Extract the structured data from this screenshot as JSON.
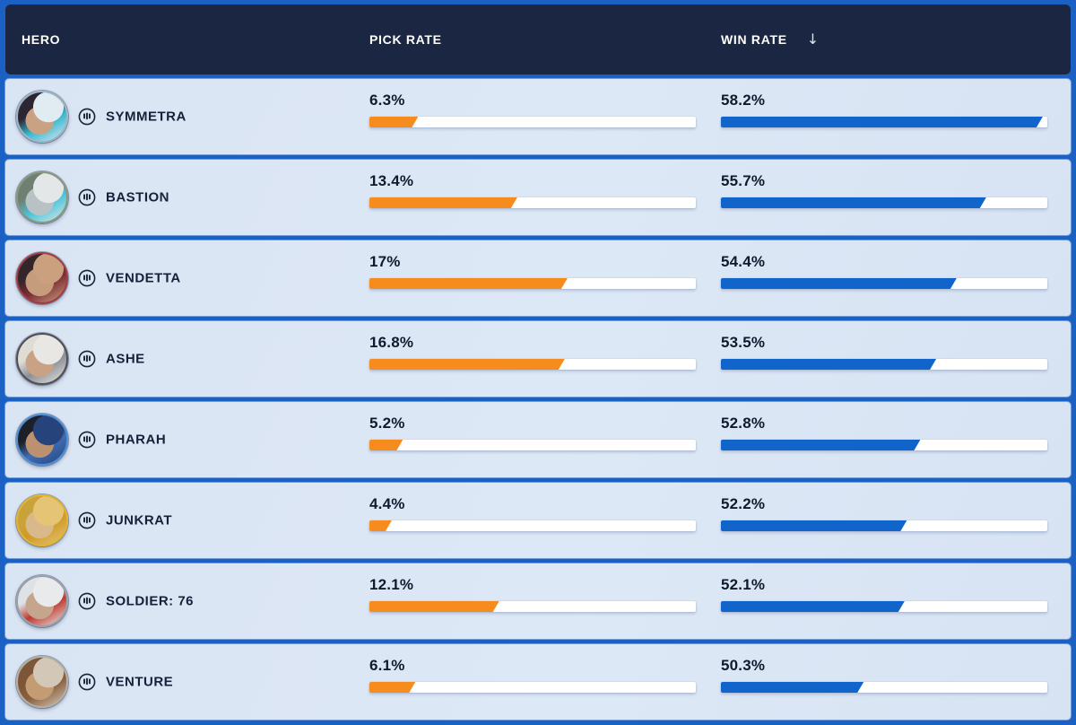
{
  "header": {
    "columns": [
      {
        "id": "hero",
        "label": "HERO"
      },
      {
        "id": "pick",
        "label": "PICK RATE"
      },
      {
        "id": "win",
        "label": "WIN RATE",
        "sort": "desc"
      }
    ],
    "sort_icon": "↓",
    "bg_color": "#1b2742",
    "text_color": "#ffffff"
  },
  "colors": {
    "page_background": "#1b61c4",
    "row_background": "#dbe6f4",
    "pick_bar": "#f78c1e",
    "win_bar": "#1164ca",
    "bar_track": "#ffffff",
    "hero_text": "#15203a"
  },
  "rows": [
    {
      "hero": "SYMMETRA",
      "role": "damage",
      "pick_label": "6.3%",
      "pick_value": 6.3,
      "win_label": "58.2%",
      "win_value": 58.2,
      "avatar": {
        "ring": "#9db6c6",
        "primary": "#e0ebf2",
        "accent": "#35b6cf",
        "hair": "#2c2633",
        "skin": "#c9a183"
      }
    },
    {
      "hero": "BASTION",
      "role": "damage",
      "pick_label": "13.4%",
      "pick_value": 13.4,
      "win_label": "55.7%",
      "win_value": 55.7,
      "avatar": {
        "ring": "#87987f",
        "primary": "#e3e7e8",
        "accent": "#49c3d8",
        "hair": "#6f7f72",
        "skin": "#b8c2c4"
      }
    },
    {
      "hero": "VENDETTA",
      "role": "damage",
      "pick_label": "17%",
      "pick_value": 17.0,
      "win_label": "54.4%",
      "win_value": 54.4,
      "avatar": {
        "ring": "#a23a43",
        "primary": "#caa07f",
        "accent": "#7e2e35",
        "hair": "#33262b",
        "skin": "#c59c7c"
      }
    },
    {
      "hero": "ASHE",
      "role": "damage",
      "pick_label": "16.8%",
      "pick_value": 16.8,
      "win_label": "53.5%",
      "win_value": 53.5,
      "avatar": {
        "ring": "#4e4f55",
        "primary": "#e9e7e3",
        "accent": "#8c8f96",
        "hair": "#dfdcd6",
        "skin": "#c9a184"
      }
    },
    {
      "hero": "PHARAH",
      "role": "damage",
      "pick_label": "5.2%",
      "pick_value": 5.2,
      "win_label": "52.8%",
      "win_value": 52.8,
      "avatar": {
        "ring": "#4b8fd6",
        "primary": "#27437c",
        "accent": "#3f6db3",
        "hair": "#1d2029",
        "skin": "#bb9170"
      }
    },
    {
      "hero": "JUNKRAT",
      "role": "damage",
      "pick_label": "4.4%",
      "pick_value": 4.4,
      "win_label": "52.2%",
      "win_value": 52.2,
      "avatar": {
        "ring": "#e5b32b",
        "primary": "#e5c575",
        "accent": "#cf9b2a",
        "hair": "#caa23c",
        "skin": "#d9b98a"
      }
    },
    {
      "hero": "SOLDIER: 76",
      "role": "damage",
      "pick_label": "12.1%",
      "pick_value": 12.1,
      "win_label": "52.1%",
      "win_value": 52.1,
      "avatar": {
        "ring": "#98a1ab",
        "primary": "#e8eaec",
        "accent": "#c0392f",
        "hair": "#dfe2e4",
        "skin": "#c5a58b"
      }
    },
    {
      "hero": "VENTURE",
      "role": "damage",
      "pick_label": "6.1%",
      "pick_value": 6.1,
      "win_label": "50.3%",
      "win_value": 50.3,
      "avatar": {
        "ring": "#b5afa2",
        "primary": "#d3c8b8",
        "accent": "#8a5f3e",
        "hair": "#7c5637",
        "skin": "#c49c74"
      }
    }
  ]
}
